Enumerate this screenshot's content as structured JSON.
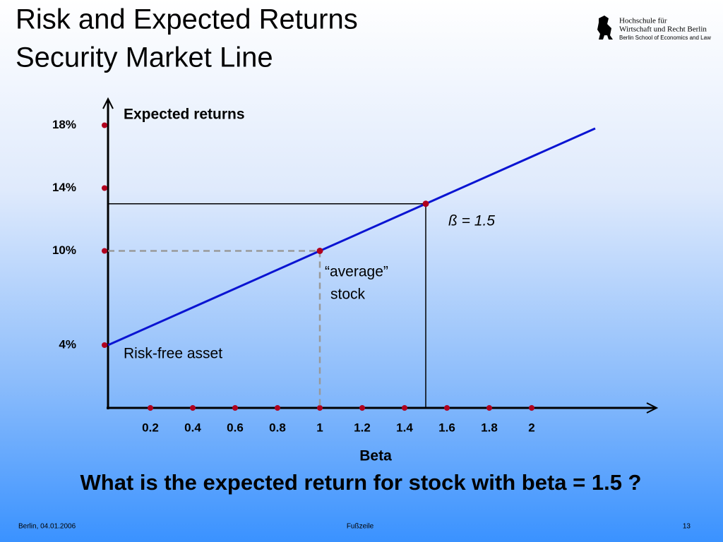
{
  "header": {
    "title_lines": [
      "Risk and Expected Returns",
      "Security Market Line"
    ],
    "logo_lines": [
      "Hochschule für",
      "Wirtschaft und Recht Berlin",
      "Berlin School of Economics and Law"
    ]
  },
  "chart_data": {
    "type": "line",
    "y_label": "Expected returns",
    "x_label": "Beta",
    "x": [
      0,
      1,
      1.5,
      2.3
    ],
    "values": [
      4,
      10,
      13,
      17.8
    ],
    "color": "#0a14d2",
    "marker_color": "#b0001e",
    "xlim": [
      0,
      2.6
    ],
    "ylim": [
      0,
      20
    ],
    "xticks": [
      0.2,
      0.4,
      0.6,
      0.8,
      1,
      1.2,
      1.4,
      1.6,
      1.8,
      2
    ],
    "yticks": [
      {
        "value": 4,
        "label": "4%"
      },
      {
        "value": 10,
        "label": "10%"
      },
      {
        "value": 14,
        "label": "14%"
      },
      {
        "value": 18,
        "label": "18%"
      }
    ],
    "annotations": [
      "ß = 1.5",
      "“average”",
      "stock",
      "Risk-free asset"
    ]
  },
  "question": "What is the expected return for stock with beta = 1.5 ?",
  "footer": {
    "left": "Berlin, 04.01.2006",
    "center": "Fußzeile",
    "right": "13"
  }
}
